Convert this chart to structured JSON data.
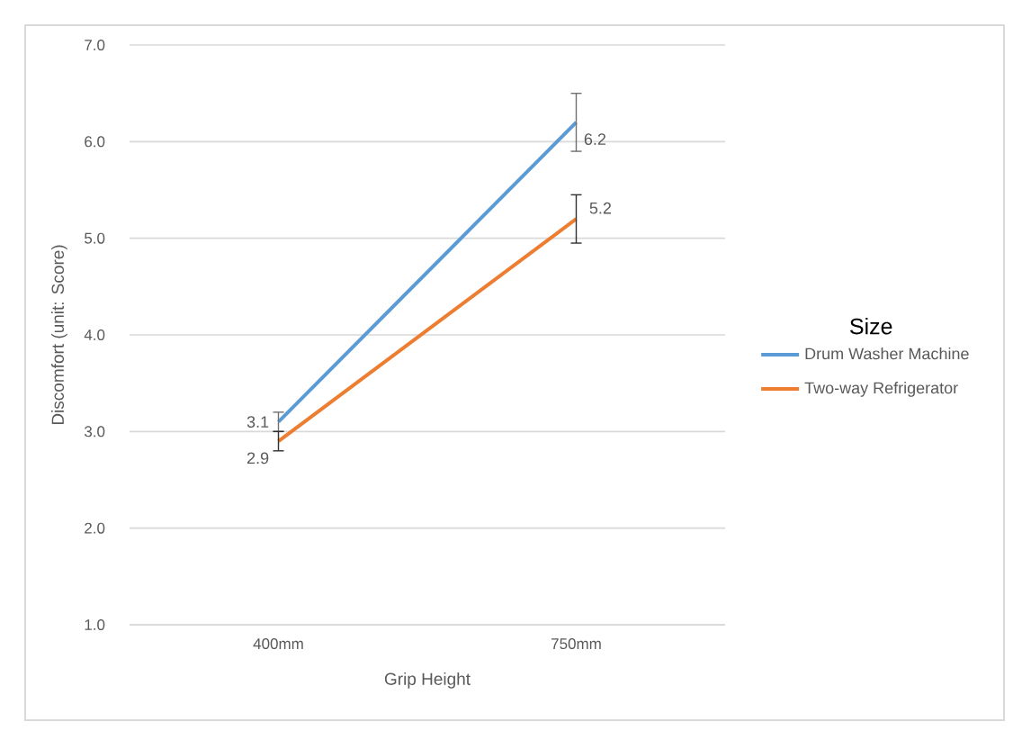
{
  "chart_data": {
    "type": "line",
    "xlabel": "Grip Height",
    "ylabel": "Discomfort (unit: Score)",
    "legend_title": "Size",
    "categories": [
      "400mm",
      "750mm"
    ],
    "series": [
      {
        "name": "Drum Washer Machine",
        "color": "#5b9bd5",
        "values": [
          3.1,
          6.2
        ],
        "errors": [
          0.1,
          0.3
        ]
      },
      {
        "name": "Two-way Refrigerator",
        "color": "#ed7d31",
        "values": [
          2.9,
          5.2
        ],
        "errors": [
          0.1,
          0.25
        ]
      }
    ],
    "ylim": [
      1,
      7
    ],
    "yticks": [
      {
        "value": 1,
        "label": "1.0"
      },
      {
        "value": 2,
        "label": "2.0"
      },
      {
        "value": 3,
        "label": "3.0"
      },
      {
        "value": 4,
        "label": "4.0"
      },
      {
        "value": 5,
        "label": "5.0"
      },
      {
        "value": 6,
        "label": "6.0"
      },
      {
        "value": 7,
        "label": "7.0"
      }
    ],
    "grid": "y",
    "legend": "right",
    "data_labels": true
  }
}
